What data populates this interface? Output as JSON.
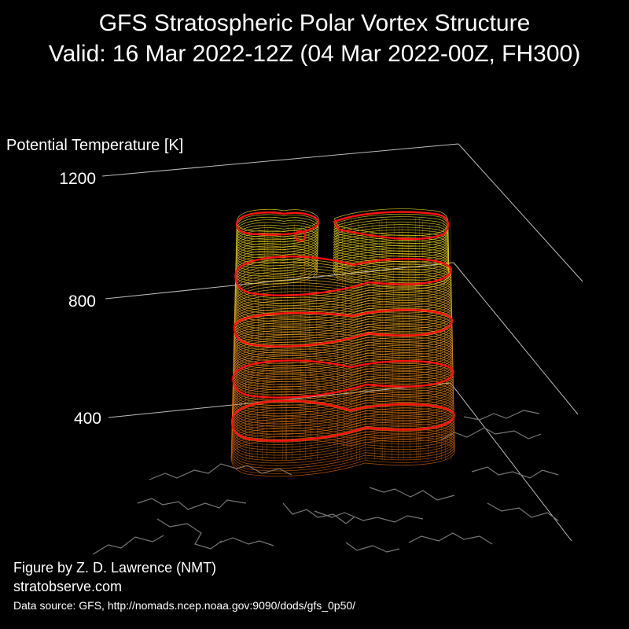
{
  "header": {
    "title": "GFS Stratospheric Polar Vortex Structure",
    "subtitle": "Valid: 16 Mar 2022-12Z  (04 Mar 2022-00Z, FH300)"
  },
  "axis": {
    "title": "Potential Temperature [K]",
    "ticks": [
      "1200",
      "800",
      "400"
    ]
  },
  "credits": {
    "author": "Figure by Z. D. Lawrence (NMT)",
    "site": "stratobserve.com",
    "source": "Data source: GFS, http://nomads.ncep.noaa.gov:9090/dods/gfs_0p50/"
  },
  "colors": {
    "background": "#000000",
    "contour_low": "#c85a00",
    "contour_mid": "#f0a020",
    "contour_high": "#e8e020",
    "highlight": "#ff1010",
    "coastline": "#777777",
    "axis_line": "#bbbbbb"
  }
}
